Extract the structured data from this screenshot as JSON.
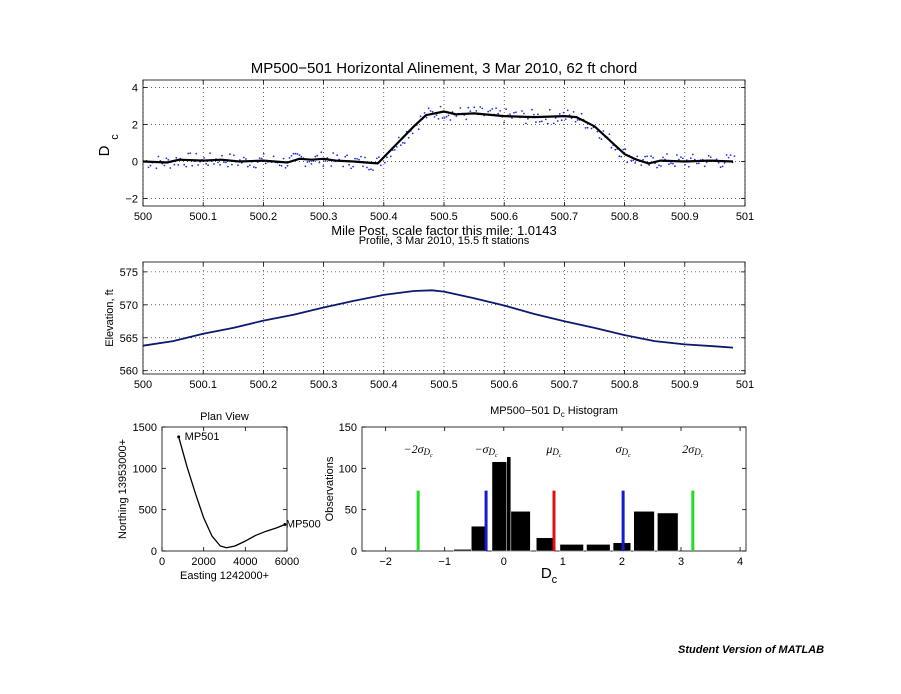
{
  "chart_data": [
    {
      "type": "line",
      "title": "MP500−501 Horizontal Alinement, 3 Mar 2010, 62 ft chord",
      "xlabel": "Mile Post, scale factor this mile: 1.0143",
      "ylabel": "D",
      "ylabel_sub": "c",
      "xlim": [
        500,
        501
      ],
      "ylim": [
        -2.4,
        4.4
      ],
      "xticks": [
        "500",
        "500.1",
        "500.2",
        "500.3",
        "500.4",
        "500.5",
        "500.6",
        "500.7",
        "500.8",
        "500.9",
        "501"
      ],
      "yticks": [
        "−2",
        "0",
        "2",
        "4"
      ],
      "grid": true,
      "series": [
        {
          "kind": "smoothed-line",
          "color": "#000000",
          "x": [
            500.0,
            500.04,
            500.06,
            500.1,
            500.13,
            500.16,
            500.2,
            500.24,
            500.26,
            500.28,
            500.3,
            500.32,
            500.35,
            500.37,
            500.39,
            500.42,
            500.45,
            500.47,
            500.5,
            500.52,
            500.55,
            500.6,
            500.65,
            500.7,
            500.72,
            500.75,
            500.78,
            500.8,
            500.82,
            500.84,
            500.86,
            500.9,
            500.94,
            500.98
          ],
          "y": [
            0.0,
            -0.05,
            0.1,
            0.05,
            0.1,
            0.0,
            0.05,
            -0.05,
            0.15,
            0.1,
            0.15,
            0.05,
            0.0,
            -0.05,
            -0.1,
            0.9,
            1.9,
            2.5,
            2.7,
            2.55,
            2.6,
            2.45,
            2.4,
            2.45,
            2.4,
            1.9,
            1.0,
            0.4,
            0.1,
            -0.1,
            0.05,
            0.0,
            0.05,
            0.0
          ]
        },
        {
          "kind": "raw-points",
          "color": "#2233dd",
          "note_points": "scattered about the smoothed line, spread roughly ±0.4"
        }
      ]
    },
    {
      "type": "line",
      "title": "Profile, 3 Mar 2010, 15.5 ft stations",
      "xlabel": "",
      "ylabel": "Elevation, ft",
      "xlim": [
        500,
        501
      ],
      "ylim": [
        559.5,
        576.5
      ],
      "xticks": [
        "500",
        "500.1",
        "500.2",
        "500.3",
        "500.4",
        "500.5",
        "500.6",
        "500.7",
        "500.8",
        "500.9",
        "501"
      ],
      "yticks": [
        "560",
        "565",
        "570",
        "575"
      ],
      "grid": true,
      "series": [
        {
          "color": "#0b1a6e",
          "x": [
            500.0,
            500.05,
            500.1,
            500.15,
            500.2,
            500.25,
            500.3,
            500.35,
            500.4,
            500.45,
            500.48,
            500.5,
            500.55,
            500.6,
            500.65,
            500.7,
            500.75,
            500.8,
            500.85,
            500.9,
            500.95,
            500.98
          ],
          "y": [
            563.8,
            564.5,
            565.6,
            566.5,
            567.6,
            568.5,
            569.6,
            570.6,
            571.5,
            572.1,
            572.2,
            572.0,
            571.0,
            569.9,
            568.6,
            567.5,
            566.5,
            565.4,
            564.5,
            564.0,
            563.7,
            563.5
          ]
        }
      ]
    },
    {
      "type": "line",
      "title": "Plan View",
      "xlabel": "Easting 1242000+",
      "ylabel": "Northing 13953000+",
      "xlim": [
        0,
        6000
      ],
      "ylim": [
        0,
        1500
      ],
      "xticks": [
        "0",
        "2000",
        "4000",
        "6000"
      ],
      "yticks": [
        "0",
        "500",
        "1000",
        "1500"
      ],
      "grid": false,
      "annotations": [
        "MP501",
        "MP500"
      ],
      "series": [
        {
          "color": "#000000",
          "x": [
            800,
            1200,
            1600,
            2000,
            2400,
            2800,
            3100,
            3500,
            4000,
            4500,
            5000,
            5500,
            5900
          ],
          "y": [
            1380,
            1020,
            700,
            400,
            180,
            60,
            40,
            60,
            120,
            190,
            240,
            280,
            320
          ]
        }
      ]
    },
    {
      "type": "bar",
      "title": "MP500−501 D",
      "title_sub": "c",
      "title_suffix": " Histogram",
      "xlabel": "D",
      "xlabel_sub": "c",
      "ylabel": "Observations",
      "xlim": [
        -2.4,
        4.1
      ],
      "ylim": [
        0,
        150
      ],
      "xticks": [
        "−2",
        "−1",
        "0",
        "1",
        "2",
        "3",
        "4"
      ],
      "yticks": [
        "0",
        "50",
        "100",
        "150"
      ],
      "grid": false,
      "bars": [
        {
          "x0": -0.85,
          "x1": -0.55,
          "value": 2
        },
        {
          "x0": -0.55,
          "x1": -0.3,
          "value": 30
        },
        {
          "x0": -0.2,
          "x1": 0.05,
          "value": 108
        },
        {
          "x0": 0.05,
          "x1": 0.12,
          "value": 114
        },
        {
          "x0": 0.12,
          "x1": 0.45,
          "value": 48
        },
        {
          "x0": 0.55,
          "x1": 0.85,
          "value": 16
        },
        {
          "x0": 0.95,
          "x1": 1.35,
          "value": 8
        },
        {
          "x0": 1.4,
          "x1": 1.8,
          "value": 8
        },
        {
          "x0": 1.85,
          "x1": 2.15,
          "value": 10
        },
        {
          "x0": 2.2,
          "x1": 2.55,
          "value": 48
        },
        {
          "x0": 2.6,
          "x1": 2.95,
          "value": 46
        }
      ],
      "vlines": [
        {
          "label": "−2σ",
          "sub": "D",
          "subsub": "c",
          "x": -1.45,
          "color": "#22dd22"
        },
        {
          "label": "−σ",
          "sub": "D",
          "subsub": "c",
          "x": -0.3,
          "color": "#1a1acc"
        },
        {
          "label": "μ",
          "sub": "D",
          "subsub": "c",
          "x": 0.85,
          "color": "#dd1111"
        },
        {
          "label": "σ",
          "sub": "D",
          "subsub": "c",
          "x": 2.02,
          "color": "#1a1acc"
        },
        {
          "label": "2σ",
          "sub": "D",
          "subsub": "c",
          "x": 3.2,
          "color": "#22dd22"
        }
      ]
    }
  ],
  "watermark": "Student Version of MATLAB"
}
